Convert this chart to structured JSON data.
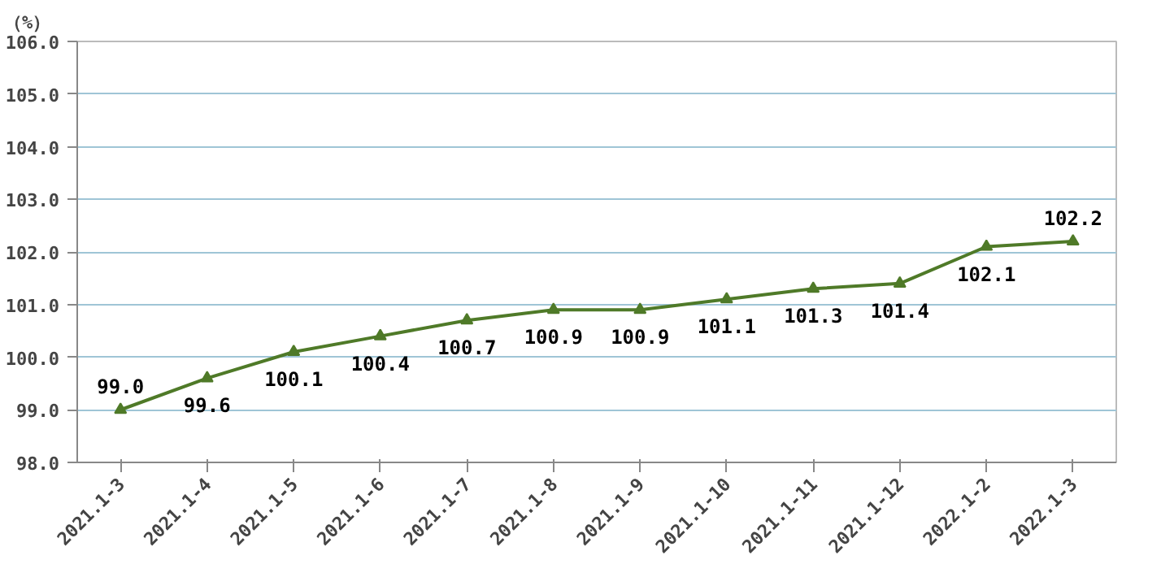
{
  "chart_data": {
    "type": "line",
    "ylabel": "（%）",
    "categories": [
      "2021.1-3",
      "2021.1-4",
      "2021.1-5",
      "2021.1-6",
      "2021.1-7",
      "2021.1-8",
      "2021.1-9",
      "2021.1-10",
      "2021.1-11",
      "2021.1-12",
      "2022.1-2",
      "2022.1-3"
    ],
    "series": [
      {
        "color": "#4f7a28",
        "values": [
          99.0,
          99.6,
          100.1,
          100.4,
          100.7,
          100.9,
          100.9,
          101.1,
          101.3,
          101.4,
          102.1,
          102.2
        ],
        "value_labels": [
          "99.0",
          "99.6",
          "100.1",
          "100.4",
          "100.7",
          "100.9",
          "100.9",
          "101.1",
          "101.3",
          "101.4",
          "102.1",
          "102.2"
        ]
      }
    ],
    "ylim": [
      98,
      106
    ],
    "yticks": [
      {
        "value": 98,
        "label": "98.0"
      },
      {
        "value": 99,
        "label": "99.0"
      },
      {
        "value": 100,
        "label": "100.0"
      },
      {
        "value": 101,
        "label": "101.0"
      },
      {
        "value": 102,
        "label": "102.0"
      },
      {
        "value": 103,
        "label": "103.0"
      },
      {
        "value": 104,
        "label": "104.0"
      },
      {
        "value": 105,
        "label": "105.0"
      },
      {
        "value": 106,
        "label": "106.0"
      }
    ],
    "grid": "y",
    "marker": "triangle",
    "line_style": "solid"
  }
}
